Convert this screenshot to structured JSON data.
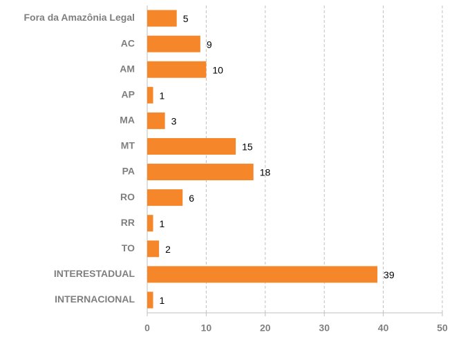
{
  "chart_data": {
    "type": "barh",
    "categories": [
      "Fora da Amazônia Legal",
      "AC",
      "AM",
      "AP",
      "MA",
      "MT",
      "PA",
      "RO",
      "RR",
      "TO",
      "INTERESTADUAL",
      "INTERNACIONAL"
    ],
    "values": [
      5,
      9,
      10,
      1,
      3,
      15,
      18,
      6,
      1,
      2,
      39,
      1
    ],
    "color": "#f5862a",
    "xlim": [
      0,
      50
    ],
    "xticks": [
      0,
      10,
      20,
      30,
      40,
      50
    ],
    "grid": true
  }
}
